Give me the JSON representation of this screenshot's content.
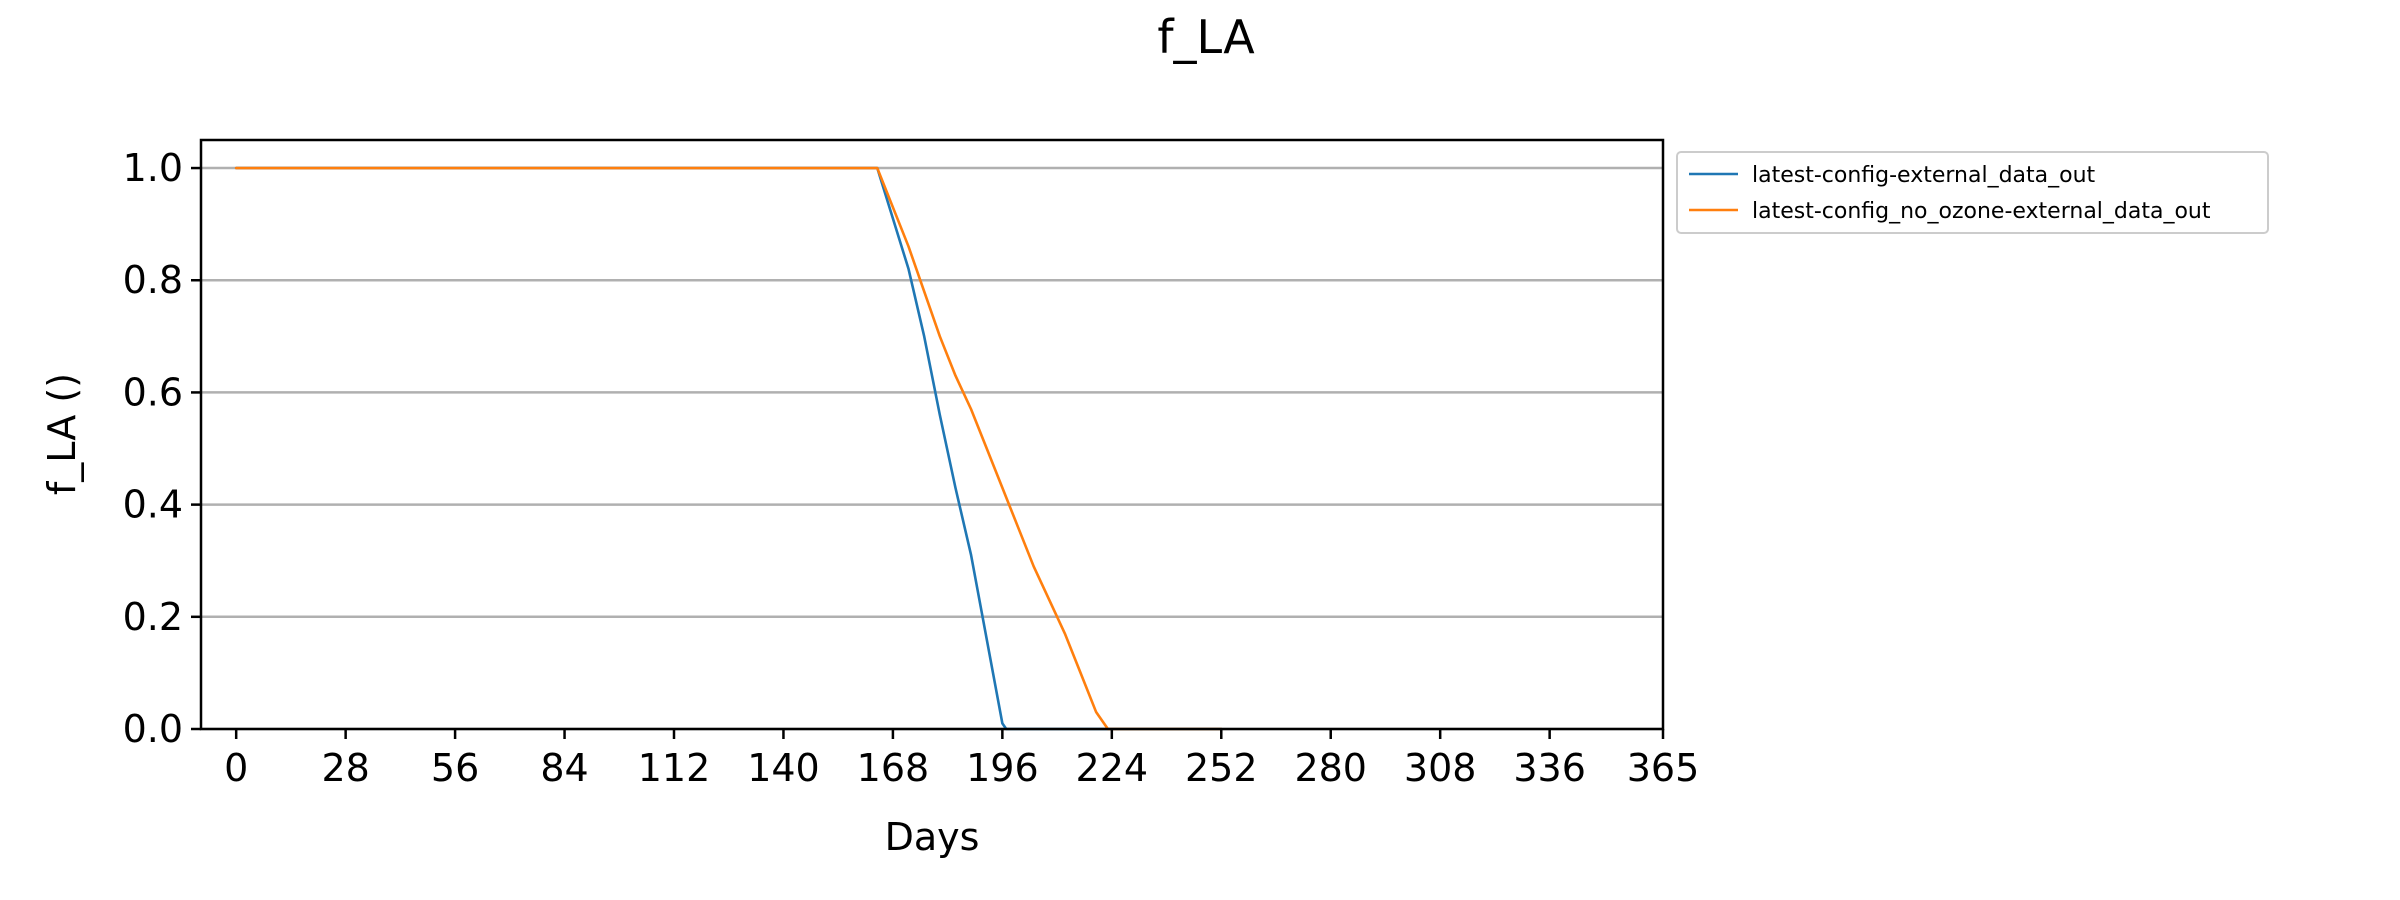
{
  "chart_data": {
    "type": "line",
    "title": "f_LA",
    "xlabel": "Days",
    "ylabel": "f_LA ()",
    "xlim": [
      -9,
      365
    ],
    "ylim": [
      0,
      1.05
    ],
    "x_ticks": [
      0,
      28,
      56,
      84,
      112,
      140,
      168,
      196,
      224,
      252,
      280,
      308,
      336,
      365
    ],
    "y_ticks": [
      0.0,
      0.2,
      0.4,
      0.6,
      0.8,
      1.0
    ],
    "y_tick_labels": [
      "0.0",
      "0.2",
      "0.4",
      "0.6",
      "0.8",
      "1.0"
    ],
    "grid": "horizontal",
    "legend_position": "outside-upper-right",
    "series": [
      {
        "name": "latest-config-external_data_out",
        "color": "#1f77b4",
        "x": [
          0,
          164,
          168,
          172,
          176,
          180,
          184,
          188,
          192,
          196,
          197,
          224,
          252
        ],
        "y": [
          1.0,
          1.0,
          0.91,
          0.82,
          0.7,
          0.56,
          0.43,
          0.31,
          0.16,
          0.01,
          0.0,
          0.0,
          0.0
        ]
      },
      {
        "name": "latest-config_no_ozone-external_data_out",
        "color": "#ff7f0e",
        "x": [
          0,
          164,
          168,
          172,
          176,
          180,
          184,
          188,
          192,
          196,
          200,
          204,
          208,
          212,
          216,
          220,
          223,
          252
        ],
        "y": [
          1.0,
          1.0,
          0.93,
          0.86,
          0.78,
          0.7,
          0.63,
          0.57,
          0.5,
          0.43,
          0.36,
          0.29,
          0.23,
          0.17,
          0.1,
          0.03,
          0.0,
          0.0
        ]
      }
    ]
  }
}
